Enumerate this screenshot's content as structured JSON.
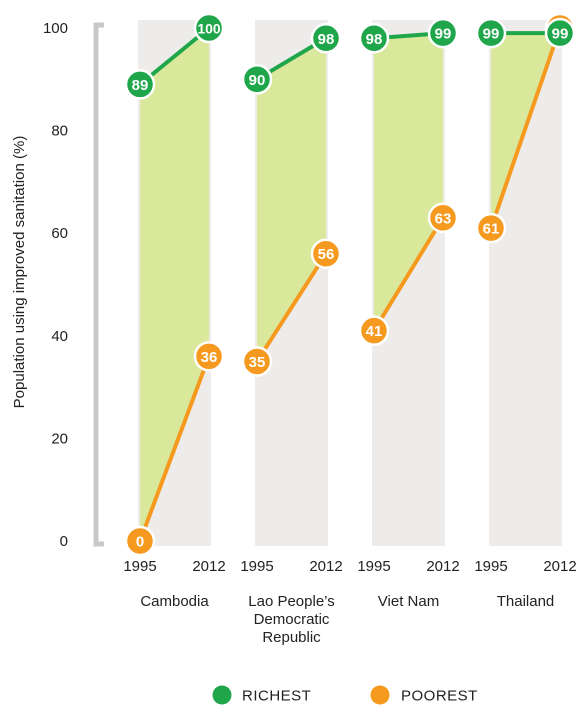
{
  "chart_data": {
    "type": "line",
    "ylabel": "Population using improved sanitation (%)",
    "ylim": [
      0,
      100
    ],
    "y_ticks": [
      "0",
      "20",
      "40",
      "60",
      "80",
      "100"
    ],
    "x_ticks": [
      "1995",
      "2012"
    ],
    "grid": false,
    "legend_position": "bottom-center",
    "groups": [
      {
        "name": "Cambodia",
        "label_lines": [
          "Cambodia"
        ],
        "richest": [
          89,
          100
        ],
        "poorest": [
          0,
          36
        ]
      },
      {
        "name": "Lao People's Democratic Republic",
        "label_lines": [
          "Lao People’s",
          "Democratic",
          "Republic"
        ],
        "richest": [
          90,
          98
        ],
        "poorest": [
          35,
          56
        ]
      },
      {
        "name": "Viet Nam",
        "label_lines": [
          "Viet Nam"
        ],
        "richest": [
          98,
          99
        ],
        "poorest": [
          41,
          63
        ]
      },
      {
        "name": "Thailand",
        "label_lines": [
          "Thailand"
        ],
        "richest": [
          99,
          99
        ],
        "poorest": [
          61,
          100
        ]
      }
    ],
    "series": [
      {
        "name": "RICHEST",
        "color": "#1fa64b"
      },
      {
        "name": "POOREST",
        "color": "#f59a1f"
      }
    ],
    "colors": {
      "richest": "#1fa64b",
      "poorest": "#f59a1f",
      "gap_fill": "#d9e89a",
      "column_background": "#eeeceb",
      "bracket": "#c8c8c8",
      "text": "#222222"
    }
  }
}
